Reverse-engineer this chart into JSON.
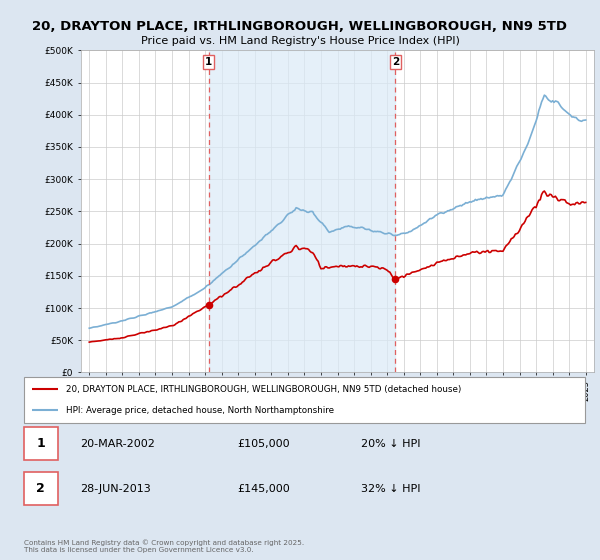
{
  "title": "20, DRAYTON PLACE, IRTHLINGBOROUGH, WELLINGBOROUGH, NN9 5TD",
  "subtitle": "Price paid vs. HM Land Registry's House Price Index (HPI)",
  "sale1_date": 2002.22,
  "sale1_price": 105000,
  "sale1_label": "20-MAR-2002",
  "sale1_pct": "20% ↓ HPI",
  "sale2_date": 2013.49,
  "sale2_price": 145000,
  "sale2_label": "28-JUN-2013",
  "sale2_pct": "32% ↓ HPI",
  "red_color": "#cc0000",
  "blue_color": "#7bafd4",
  "blue_fill": "#daeaf7",
  "dashed_color": "#e06060",
  "bg_color": "#dce6f1",
  "plot_bg": "#ffffff",
  "grid_color": "#cccccc",
  "ylim": [
    0,
    500000
  ],
  "xlim": [
    1994.5,
    2025.5
  ],
  "legend_line1": "20, DRAYTON PLACE, IRTHLINGBOROUGH, WELLINGBOROUGH, NN9 5TD (detached house)",
  "legend_line2": "HPI: Average price, detached house, North Northamptonshire",
  "footer": "Contains HM Land Registry data © Crown copyright and database right 2025.\nThis data is licensed under the Open Government Licence v3.0."
}
